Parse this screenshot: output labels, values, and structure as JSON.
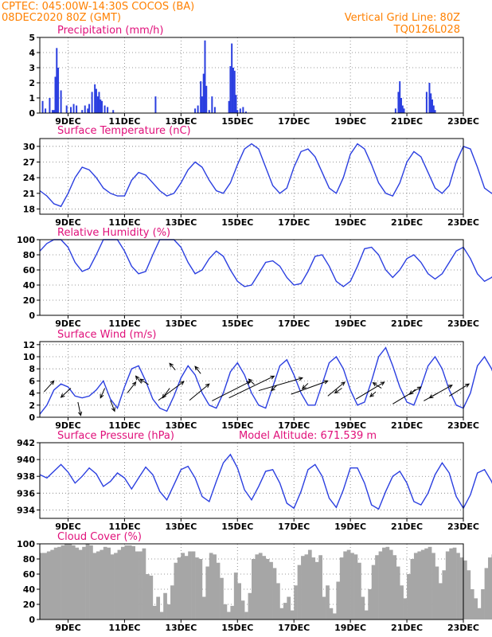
{
  "header": {
    "line1_left": "CPTEC:  045:00W-14:30S  COCOS (BA)",
    "line2_left": "08DEC2020 80Z (GMT)",
    "line1_right": "Vertical Grid Line: 80Z",
    "line2_right": "TQ0126L028"
  },
  "colors": {
    "series": "#2b3fe0",
    "cloud": "#a6a6a6",
    "header": "#ff8000",
    "title": "#e0107a"
  },
  "x_axis": {
    "labels": [
      "9DEC",
      "11DEC",
      "13DEC",
      "15DEC",
      "17DEC",
      "19DEC",
      "21DEC",
      "23DEC"
    ],
    "range_days": [
      8.0,
      23.0
    ]
  },
  "chart_data": [
    {
      "id": "precip",
      "type": "bar",
      "title": "Precipitation (mm/h)",
      "ylim": [
        0,
        5
      ],
      "yticks": [
        "0",
        "1",
        "2",
        "3",
        "4",
        "5"
      ],
      "grid": true,
      "x": [
        8.1,
        8.2,
        8.35,
        8.45,
        8.5,
        8.55,
        8.6,
        8.65,
        8.75,
        8.95,
        9.1,
        9.2,
        9.3,
        9.5,
        9.6,
        9.7,
        9.75,
        9.85,
        9.95,
        10.0,
        10.05,
        10.1,
        10.15,
        10.2,
        10.3,
        10.4,
        10.6,
        12.1,
        13.5,
        13.6,
        13.7,
        13.75,
        13.8,
        13.85,
        13.9,
        14.0,
        14.1,
        14.2,
        14.7,
        14.75,
        14.8,
        14.85,
        14.9,
        14.95,
        15.0,
        15.1,
        15.2,
        15.3,
        20.6,
        20.7,
        20.75,
        20.8,
        20.85,
        20.9,
        21.7,
        21.8,
        21.85,
        21.9,
        21.95,
        22.0
      ],
      "values": [
        0.8,
        0.3,
        1.0,
        0.2,
        0.2,
        2.4,
        4.3,
        3.0,
        1.5,
        0.5,
        0.4,
        0.6,
        0.5,
        0.2,
        0.5,
        0.3,
        0.6,
        1.4,
        1.9,
        1.6,
        1.1,
        1.4,
        0.9,
        0.8,
        0.5,
        0.4,
        0.2,
        1.1,
        0.3,
        0.5,
        2.1,
        1.1,
        2.6,
        4.8,
        1.8,
        0.2,
        1.1,
        0.4,
        0.8,
        3.1,
        4.6,
        3.0,
        2.8,
        1.2,
        0.2,
        0.3,
        0.4,
        0.1,
        0.3,
        1.4,
        2.1,
        1.0,
        0.5,
        0.3,
        1.4,
        2.0,
        1.3,
        0.9,
        0.5,
        0.2
      ]
    },
    {
      "id": "temp",
      "type": "line",
      "title": "Surface Temperature (nC)",
      "ylim": [
        17,
        31.5
      ],
      "yticks": [
        "18",
        "21",
        "24",
        "27",
        "30"
      ],
      "grid": true,
      "x_start": 8.0,
      "x_step": 0.25,
      "values": [
        21.5,
        20.5,
        19.0,
        18.5,
        21.0,
        24.0,
        26.0,
        25.5,
        24.0,
        22.0,
        21.0,
        20.5,
        20.5,
        23.5,
        25.0,
        24.5,
        23.0,
        21.5,
        20.5,
        21.0,
        23.0,
        25.5,
        27.0,
        26.0,
        23.5,
        21.5,
        21.0,
        23.0,
        26.5,
        29.5,
        30.5,
        29.5,
        26.0,
        22.5,
        21.0,
        22.0,
        26.0,
        29.0,
        29.5,
        28.0,
        25.0,
        22.0,
        21.0,
        24.0,
        28.5,
        30.5,
        29.5,
        26.5,
        23.0,
        21.0,
        20.5,
        23.0,
        27.0,
        29.0,
        28.0,
        25.0,
        22.0,
        21.0,
        22.5,
        27.0,
        30.0,
        29.5,
        26.0,
        22.0,
        21.0,
        22.0,
        26.0,
        28.5,
        29.0,
        27.0,
        23.0,
        21.5,
        21.5,
        24.5,
        28.5,
        29.0,
        27.0,
        24.0,
        22.0,
        21.0,
        22.5,
        26.5,
        28.5,
        28.0,
        24.5,
        21.5,
        20.5,
        22.0,
        26.5,
        29.5,
        30.0,
        27.0,
        23.5,
        21.0,
        21.0,
        24.5,
        29.0,
        30.0,
        28.5,
        24.5,
        21.5,
        21.0,
        23.0,
        27.5,
        29.5,
        28.5,
        25.0,
        22.0,
        21.0,
        22.5,
        27.0,
        29.5,
        29.5,
        26.5,
        22.5,
        20.5,
        21.0,
        24.0,
        27.5,
        28.5,
        27.0,
        24.0,
        21.5,
        21.0,
        22.0,
        25.5,
        27.0,
        25.5,
        22.5,
        19.5,
        19.0,
        22.5,
        27.0,
        29.0,
        29.5,
        28.0,
        25.0
      ]
    },
    {
      "id": "rh",
      "type": "line",
      "title": "Relative Humidity (%)",
      "ylim": [
        0,
        100
      ],
      "yticks": [
        "0",
        "20",
        "40",
        "60",
        "80",
        "100"
      ],
      "grid": true,
      "x_start": 8.0,
      "x_step": 0.25,
      "values": [
        85,
        95,
        100,
        100,
        90,
        70,
        58,
        62,
        80,
        100,
        100,
        100,
        85,
        65,
        55,
        58,
        80,
        100,
        100,
        100,
        90,
        70,
        55,
        60,
        75,
        85,
        78,
        60,
        45,
        38,
        40,
        55,
        70,
        72,
        65,
        50,
        40,
        42,
        58,
        78,
        80,
        65,
        45,
        38,
        45,
        65,
        88,
        90,
        80,
        60,
        50,
        60,
        75,
        80,
        70,
        55,
        48,
        55,
        70,
        85,
        90,
        75,
        55,
        45,
        50,
        62,
        58,
        45,
        38,
        40,
        42,
        45,
        50,
        52,
        58,
        70,
        75,
        62,
        45,
        40,
        45,
        55,
        58,
        50,
        42,
        38,
        40,
        50,
        62,
        65,
        55,
        42,
        38,
        40,
        55,
        70,
        72,
        60,
        45,
        38,
        40,
        48,
        60,
        65,
        55,
        45,
        42,
        50,
        65,
        70,
        60,
        45,
        38,
        42,
        55,
        65,
        68,
        62,
        55,
        62,
        70,
        75,
        72,
        65,
        55,
        45,
        55,
        80,
        95,
        100,
        98,
        85,
        65,
        45,
        35,
        40,
        45
      ]
    },
    {
      "id": "wind",
      "type": "line",
      "title": "Surface Wind (m/s)",
      "ylim": [
        0,
        12.5
      ],
      "yticks": [
        "0",
        "2",
        "4",
        "6",
        "8",
        "10",
        "12"
      ],
      "grid": true,
      "x_start": 8.0,
      "x_step": 0.25,
      "values": [
        0.5,
        2.0,
        4.5,
        5.5,
        5.0,
        3.5,
        3.2,
        3.5,
        4.5,
        6.0,
        3.0,
        1.5,
        5.0,
        8.0,
        8.5,
        6.0,
        3.0,
        1.5,
        1.0,
        3.5,
        6.5,
        8.5,
        7.0,
        4.0,
        2.0,
        1.5,
        4.0,
        7.5,
        9.0,
        7.0,
        4.0,
        2.0,
        1.5,
        5.0,
        8.5,
        9.5,
        7.0,
        4.0,
        2.0,
        2.0,
        5.5,
        9.0,
        10.0,
        8.0,
        4.5,
        2.0,
        2.5,
        6.0,
        10.0,
        11.5,
        8.5,
        5.0,
        2.5,
        2.0,
        5.0,
        8.5,
        10.0,
        8.0,
        4.5,
        2.0,
        1.5,
        4.0,
        8.5,
        10.0,
        8.0,
        5.0,
        2.5,
        1.5,
        3.0,
        7.0,
        9.5,
        8.5,
        5.0,
        2.0,
        1.5,
        3.5,
        7.5,
        9.5,
        8.0,
        4.5,
        2.0,
        1.5,
        3.0,
        6.5,
        9.0,
        8.5,
        5.0,
        2.5,
        2.0,
        4.0,
        8.0,
        9.5,
        8.0,
        5.0,
        2.5,
        2.0,
        3.5,
        7.5,
        9.0,
        8.0,
        4.5,
        2.0,
        1.5,
        3.0,
        7.5,
        9.0,
        7.5,
        4.5,
        2.5,
        2.0,
        3.5,
        7.0,
        9.0,
        8.0,
        5.0,
        2.5,
        1.5,
        3.5,
        7.0,
        9.0,
        8.5,
        5.5,
        2.5,
        2.0,
        3.5,
        6.5,
        8.0,
        7.5,
        5.0,
        2.5,
        2.0,
        3.0,
        6.0,
        7.5,
        7.0,
        6.5,
        6.0
      ],
      "vectors": [
        {
          "x": 8.15,
          "y": 4.2,
          "dx": 0.35,
          "dy": 1.8
        },
        {
          "x": 9.1,
          "y": 4.8,
          "dx": -0.35,
          "dy": -1.5
        },
        {
          "x": 9.35,
          "y": 2.5,
          "dx": 0.1,
          "dy": -2.2
        },
        {
          "x": 10.3,
          "y": 4.8,
          "dx": -0.15,
          "dy": -1.6
        },
        {
          "x": 10.5,
          "y": 2.8,
          "dx": 0.15,
          "dy": -1.8
        },
        {
          "x": 11.1,
          "y": 4.0,
          "dx": 0.3,
          "dy": 1.8
        },
        {
          "x": 11.6,
          "y": 5.6,
          "dx": -0.2,
          "dy": 1.2
        },
        {
          "x": 11.85,
          "y": 5.4,
          "dx": -0.3,
          "dy": 0.9
        },
        {
          "x": 12.2,
          "y": 2.8,
          "dx": 0.9,
          "dy": 3.1
        },
        {
          "x": 12.6,
          "y": 4.8,
          "dx": -0.25,
          "dy": -1.6
        },
        {
          "x": 12.8,
          "y": 7.8,
          "dx": -0.2,
          "dy": 1.1
        },
        {
          "x": 13.3,
          "y": 2.8,
          "dx": 0.7,
          "dy": 2.7
        },
        {
          "x": 13.7,
          "y": 7.2,
          "dx": -0.2,
          "dy": 1.2
        },
        {
          "x": 14.1,
          "y": 2.7,
          "dx": 1.35,
          "dy": 3.2
        },
        {
          "x": 14.7,
          "y": 3.2,
          "dx": 1.6,
          "dy": 3.6
        },
        {
          "x": 15.6,
          "y": 5.4,
          "dx": -0.2,
          "dy": 0.9
        },
        {
          "x": 15.75,
          "y": 4.4,
          "dx": 1.55,
          "dy": 2.1
        },
        {
          "x": 16.4,
          "y": 5.3,
          "dx": -0.2,
          "dy": -0.9
        },
        {
          "x": 16.9,
          "y": 3.8,
          "dx": 1.3,
          "dy": 2.2
        },
        {
          "x": 17.5,
          "y": 5.6,
          "dx": -0.2,
          "dy": -0.9
        },
        {
          "x": 18.2,
          "y": 3.5,
          "dx": 0.6,
          "dy": 2.3
        },
        {
          "x": 18.7,
          "y": 4.8,
          "dx": -0.25,
          "dy": -0.8
        },
        {
          "x": 19.2,
          "y": 3.0,
          "dx": 1.0,
          "dy": 2.8
        },
        {
          "x": 19.9,
          "y": 4.2,
          "dx": -0.2,
          "dy": -0.8
        },
        {
          "x": 20.1,
          "y": 4.8,
          "dx": -0.3,
          "dy": 0.9
        },
        {
          "x": 20.5,
          "y": 2.2,
          "dx": 1.0,
          "dy": 2.8
        },
        {
          "x": 21.3,
          "y": 4.6,
          "dx": -0.2,
          "dy": -0.8
        },
        {
          "x": 21.6,
          "y": 2.7,
          "dx": 1.0,
          "dy": 2.6
        },
        {
          "x": 22.1,
          "y": 4.0,
          "dx": -0.3,
          "dy": -0.8
        },
        {
          "x": 22.5,
          "y": 3.5,
          "dx": 0.7,
          "dy": 2.0
        }
      ]
    },
    {
      "id": "pres",
      "type": "line",
      "title": "Surface Pressure (hPa)",
      "annotation": "Model Altitude: 671.539 m",
      "ylim": [
        933,
        942
      ],
      "yticks": [
        "934",
        "936",
        "938",
        "940",
        "942"
      ],
      "grid": true,
      "x_start": 8.0,
      "x_step": 0.25,
      "values": [
        938.2,
        937.8,
        938.6,
        939.4,
        938.5,
        937.2,
        938.0,
        939.0,
        938.3,
        936.8,
        937.4,
        938.4,
        937.8,
        936.5,
        937.8,
        939.1,
        938.2,
        936.2,
        935.2,
        937.0,
        938.8,
        939.2,
        937.8,
        935.6,
        935.0,
        937.4,
        939.6,
        940.6,
        939.0,
        936.4,
        935.2,
        936.8,
        938.6,
        938.8,
        937.2,
        934.8,
        934.2,
        936.2,
        938.8,
        939.4,
        938.0,
        935.4,
        934.3,
        936.4,
        939.0,
        939.0,
        937.2,
        934.6,
        934.1,
        936.2,
        938.0,
        938.6,
        937.2,
        935.0,
        934.6,
        936.0,
        938.2,
        939.6,
        938.4,
        935.6,
        934.2,
        935.8,
        938.4,
        938.8,
        937.4,
        935.2,
        934.6,
        935.8,
        937.6,
        938.4,
        936.8,
        935.0,
        934.9,
        936.2,
        938.0,
        938.2,
        936.6,
        934.6,
        934.8,
        936.0,
        937.4,
        936.8,
        935.6,
        934.6,
        934.9,
        936.2,
        936.6,
        935.6,
        934.2,
        933.4,
        934.0,
        935.0,
        935.2,
        934.0,
        932.8,
        933.4,
        934.8,
        934.9,
        933.8,
        932.4,
        932.6,
        933.8,
        934.4,
        933.4,
        932.1,
        932.6,
        933.9,
        934.6,
        934.0,
        932.8,
        932.7,
        933.8,
        934.3,
        933.6,
        932.3,
        932.4,
        933.6,
        934.4,
        933.8,
        932.6,
        932.3,
        933.2,
        933.5,
        932.6,
        931.8,
        932.5,
        933.8,
        934.4,
        934.0,
        933.2,
        932.8,
        933.6,
        934.5,
        932.7,
        931.3,
        932.6,
        934.6,
        935.2,
        934.2,
        933.0,
        934.2
      ]
    },
    {
      "id": "cloud",
      "type": "area",
      "title": "Cloud Cover (%)",
      "ylim": [
        0,
        100
      ],
      "yticks": [
        "0",
        "20",
        "40",
        "60",
        "80",
        "100"
      ],
      "grid": true,
      "x_start": 8.0,
      "x_step": 0.125,
      "values": [
        88,
        88,
        90,
        92,
        95,
        96,
        98,
        100,
        100,
        98,
        95,
        92,
        96,
        100,
        98,
        88,
        90,
        92,
        96,
        95,
        86,
        88,
        92,
        96,
        98,
        98,
        97,
        90,
        90,
        94,
        60,
        58,
        18,
        30,
        10,
        35,
        20,
        45,
        75,
        82,
        88,
        84,
        90,
        90,
        82,
        80,
        30,
        70,
        88,
        86,
        75,
        55,
        20,
        10,
        18,
        62,
        48,
        25,
        10,
        35,
        80,
        86,
        88,
        84,
        80,
        76,
        68,
        48,
        15,
        22,
        30,
        12,
        45,
        72,
        84,
        86,
        92,
        82,
        76,
        85,
        30,
        45,
        15,
        8,
        50,
        82,
        90,
        92,
        88,
        86,
        75,
        30,
        12,
        40,
        72,
        85,
        90,
        95,
        96,
        92,
        85,
        70,
        45,
        28,
        60,
        80,
        88,
        90,
        92,
        94,
        96,
        88,
        70,
        48,
        65,
        90,
        94,
        95,
        88,
        82,
        78,
        65,
        40,
        28,
        15,
        40,
        68,
        82,
        86,
        90,
        92,
        88,
        76,
        56,
        30,
        10,
        30,
        55,
        74,
        85,
        88,
        90,
        90,
        85,
        72,
        50,
        22,
        35,
        62,
        80,
        88,
        88,
        85,
        78,
        62,
        38,
        15,
        30,
        60,
        78,
        86,
        90,
        88,
        84,
        76,
        58,
        32,
        20,
        50,
        76,
        84,
        86,
        88,
        86,
        78,
        60,
        35,
        20,
        40,
        70,
        85,
        90,
        92,
        90,
        78,
        55,
        30,
        15,
        8,
        5,
        20,
        62,
        80,
        88,
        92,
        95,
        98,
        96,
        92,
        90,
        88,
        94,
        96,
        98,
        96,
        92,
        90,
        92,
        95,
        96,
        94,
        90,
        88,
        92,
        95,
        96,
        92,
        90,
        92,
        95,
        98,
        96,
        92,
        88,
        90,
        94,
        96,
        92,
        90,
        92,
        94,
        95,
        93,
        92
      ]
    }
  ]
}
